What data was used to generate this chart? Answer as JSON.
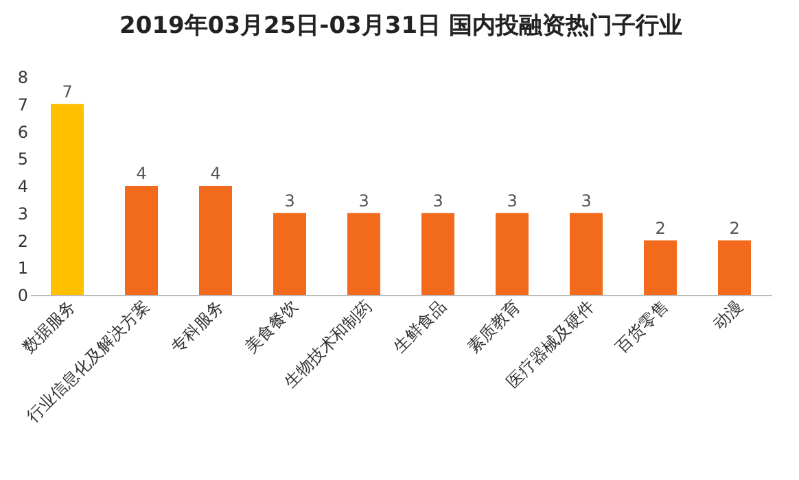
{
  "chart_data": {
    "type": "bar",
    "title": "2019年03月25日-03月31日 国内投融资热门子行业",
    "categories": [
      "数据服务",
      "行业信息化及解决方案",
      "专科服务",
      "美食餐饮",
      "生物技术和制药",
      "生鲜食品",
      "素质教育",
      "医疗器械及硬件",
      "百货零售",
      "动漫"
    ],
    "values": [
      7,
      4,
      4,
      3,
      3,
      3,
      3,
      3,
      2,
      2
    ],
    "colors": [
      "#ffc000",
      "#f26b1d",
      "#f26b1d",
      "#f26b1d",
      "#f26b1d",
      "#f26b1d",
      "#f26b1d",
      "#f26b1d",
      "#f26b1d",
      "#f26b1d"
    ],
    "ylim": [
      0,
      8
    ],
    "yticks": [
      0,
      1,
      2,
      3,
      4,
      5,
      6,
      7,
      8
    ],
    "grid": false,
    "data_labels": true
  }
}
